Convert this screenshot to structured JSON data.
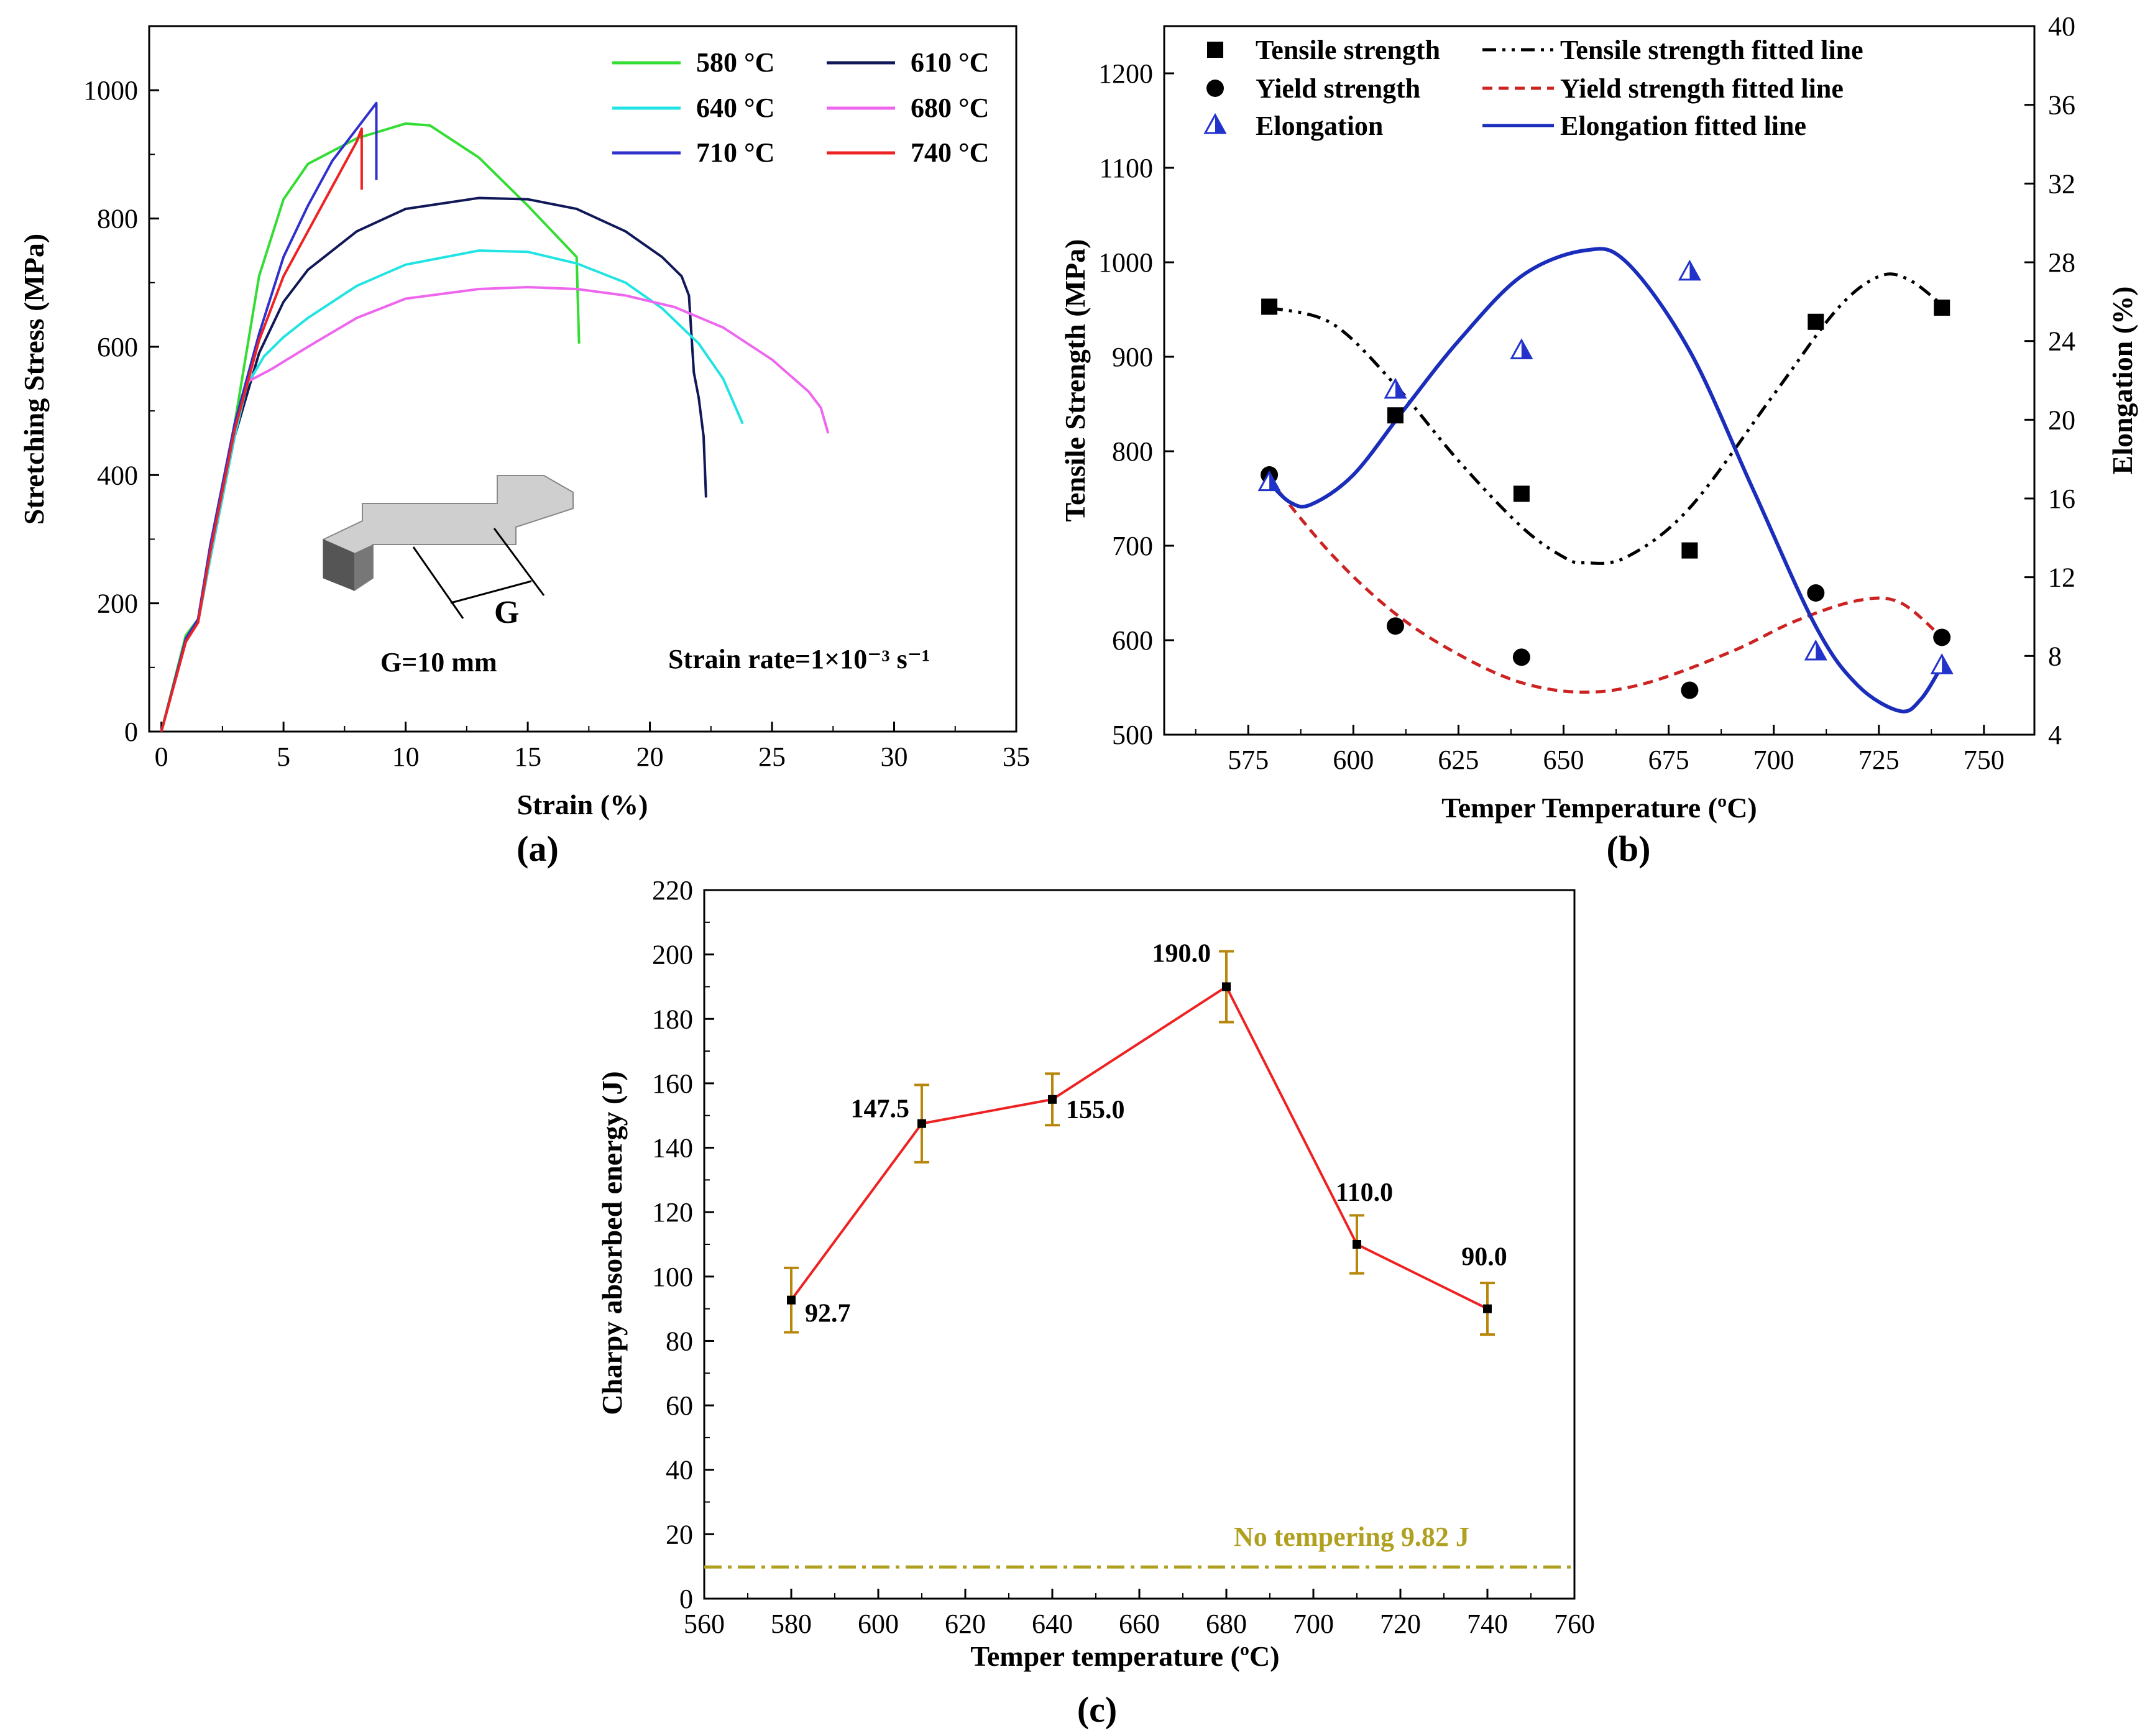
{
  "chart_data": [
    {
      "panel": "(a)",
      "type": "line",
      "xlabel": "Strain (%)",
      "ylabel": "Stretching Stress (MPa)",
      "xlim": [
        -0.5,
        35
      ],
      "ylim": [
        0,
        1100
      ],
      "xticks": [
        0,
        5,
        10,
        15,
        20,
        25,
        30,
        35
      ],
      "yticks": [
        0,
        200,
        400,
        600,
        800,
        1000
      ],
      "legend_position": "top-right",
      "annotations": [
        "G=10 mm",
        "Strain rate=1×10⁻³ s⁻¹",
        "G"
      ],
      "series": [
        {
          "name": "580 °C",
          "color": "#33dd33",
          "points": [
            [
              0,
              0
            ],
            [
              1,
              150
            ],
            [
              1.5,
              175
            ],
            [
              2,
              280
            ],
            [
              3,
              480
            ],
            [
              4,
              710
            ],
            [
              5,
              830
            ],
            [
              6,
              885
            ],
            [
              8,
              925
            ],
            [
              10,
              948
            ],
            [
              11,
              945
            ],
            [
              13,
              895
            ],
            [
              15,
              820
            ],
            [
              16.5,
              760
            ],
            [
              17,
              740
            ],
            [
              17.1,
              605
            ]
          ]
        },
        {
          "name": "610 °C",
          "color": "#101858",
          "points": [
            [
              0,
              0
            ],
            [
              1,
              140
            ],
            [
              1.5,
              170
            ],
            [
              2,
              270
            ],
            [
              3,
              460
            ],
            [
              4,
              590
            ],
            [
              5,
              670
            ],
            [
              6,
              720
            ],
            [
              8,
              780
            ],
            [
              10,
              815
            ],
            [
              13,
              832
            ],
            [
              15,
              830
            ],
            [
              17,
              815
            ],
            [
              19,
              780
            ],
            [
              20.5,
              740
            ],
            [
              21.3,
              710
            ],
            [
              21.6,
              680
            ],
            [
              21.8,
              560
            ],
            [
              22,
              520
            ],
            [
              22.2,
              460
            ],
            [
              22.3,
              365
            ]
          ]
        },
        {
          "name": "640 °C",
          "color": "#22e3e3",
          "points": [
            [
              0,
              0
            ],
            [
              1,
              140
            ],
            [
              1.5,
              170
            ],
            [
              2,
              270
            ],
            [
              3,
              460
            ],
            [
              3.5,
              540
            ],
            [
              4.2,
              585
            ],
            [
              5,
              615
            ],
            [
              6,
              645
            ],
            [
              8,
              695
            ],
            [
              10,
              728
            ],
            [
              13,
              750
            ],
            [
              15,
              748
            ],
            [
              17,
              730
            ],
            [
              19,
              700
            ],
            [
              20.5,
              660
            ],
            [
              22,
              605
            ],
            [
              23,
              550
            ],
            [
              23.8,
              480
            ]
          ]
        },
        {
          "name": "680 °C",
          "color": "#ee66ee",
          "points": [
            [
              0,
              0
            ],
            [
              1,
              140
            ],
            [
              1.5,
              170
            ],
            [
              2,
              280
            ],
            [
              3,
              470
            ],
            [
              3.5,
              545
            ],
            [
              4.5,
              565
            ],
            [
              6,
              600
            ],
            [
              8,
              645
            ],
            [
              10,
              675
            ],
            [
              13,
              690
            ],
            [
              15,
              693
            ],
            [
              17,
              690
            ],
            [
              19,
              680
            ],
            [
              21,
              662
            ],
            [
              23,
              630
            ],
            [
              25,
              580
            ],
            [
              26.5,
              530
            ],
            [
              27,
              505
            ],
            [
              27.3,
              465
            ]
          ]
        },
        {
          "name": "710 °C",
          "color": "#3030cc",
          "points": [
            [
              0,
              0
            ],
            [
              1,
              145
            ],
            [
              1.5,
              175
            ],
            [
              2,
              290
            ],
            [
              3,
              480
            ],
            [
              4,
              620
            ],
            [
              5,
              740
            ],
            [
              6,
              820
            ],
            [
              7,
              890
            ],
            [
              8,
              940
            ],
            [
              8.8,
              980
            ],
            [
              8.8,
              860
            ]
          ]
        },
        {
          "name": "740 °C",
          "color": "#ee2222",
          "points": [
            [
              0,
              0
            ],
            [
              1,
              140
            ],
            [
              1.5,
              170
            ],
            [
              2,
              280
            ],
            [
              3,
              470
            ],
            [
              4,
              610
            ],
            [
              5,
              710
            ],
            [
              6,
              780
            ],
            [
              7,
              850
            ],
            [
              8,
              920
            ],
            [
              8.2,
              940
            ],
            [
              8.2,
              845
            ]
          ]
        }
      ]
    },
    {
      "panel": "(b)",
      "type": "scatter",
      "xlabel": "Temper Temperature (ºC)",
      "ylabel": "Tensile Strength (MPa)",
      "y2label": "Elongation (%)",
      "xlim": [
        555,
        762
      ],
      "ylim": [
        500,
        1250
      ],
      "y2lim": [
        4,
        40
      ],
      "xticks": [
        575,
        600,
        625,
        650,
        675,
        700,
        725,
        750
      ],
      "yticks": [
        500,
        600,
        700,
        800,
        900,
        1000,
        1100,
        1200
      ],
      "y2ticks": [
        4,
        8,
        12,
        16,
        20,
        24,
        28,
        32,
        36,
        40
      ],
      "legend_position": "top",
      "x": [
        580,
        610,
        640,
        680,
        710,
        740
      ],
      "series": [
        {
          "name": "Tensile strength",
          "marker": "square",
          "axis": "left",
          "values": [
            953,
            838,
            755,
            695,
            937,
            952
          ]
        },
        {
          "name": "Yield strength",
          "marker": "circle",
          "axis": "left",
          "values": [
            775,
            615,
            582,
            547,
            650,
            603
          ]
        },
        {
          "name": "Elongation",
          "marker": "triangle",
          "axis": "right",
          "values": [
            16.8,
            21.5,
            23.5,
            27.5,
            8.2,
            7.5
          ]
        }
      ],
      "fitted_lines": [
        {
          "name": "Tensile strength fitted line",
          "axis": "left",
          "style": "dash-dot-dot",
          "color": "#000000",
          "points": [
            [
              580,
              952
            ],
            [
              595,
              935
            ],
            [
              610,
              870
            ],
            [
              625,
              790
            ],
            [
              640,
              720
            ],
            [
              650,
              688
            ],
            [
              655,
              682
            ],
            [
              665,
              688
            ],
            [
              680,
              740
            ],
            [
              700,
              860
            ],
            [
              715,
              950
            ],
            [
              725,
              985
            ],
            [
              732,
              982
            ],
            [
              740,
              955
            ]
          ]
        },
        {
          "name": "Yield strength fitted line",
          "axis": "left",
          "style": "dashed",
          "color": "#cc2222",
          "points": [
            [
              580,
              770
            ],
            [
              595,
              690
            ],
            [
              610,
              628
            ],
            [
              625,
              585
            ],
            [
              640,
              555
            ],
            [
              655,
              545
            ],
            [
              670,
              555
            ],
            [
              690,
              588
            ],
            [
              705,
              620
            ],
            [
              720,
              642
            ],
            [
              730,
              640
            ],
            [
              740,
              603
            ]
          ]
        },
        {
          "name": "Elongation fitted line",
          "axis": "right",
          "style": "solid",
          "color": "#1a2dbb",
          "points": [
            [
              580,
              16.8
            ],
            [
              585,
              15.8
            ],
            [
              590,
              15.7
            ],
            [
              600,
              17.2
            ],
            [
              612,
              20.5
            ],
            [
              625,
              24
            ],
            [
              640,
              27.3
            ],
            [
              655,
              28.6
            ],
            [
              665,
              28
            ],
            [
              680,
              23.5
            ],
            [
              695,
              16.5
            ],
            [
              710,
              9.5
            ],
            [
              720,
              6.5
            ],
            [
              730,
              5.2
            ],
            [
              735,
              5.8
            ],
            [
              740,
              7.5
            ]
          ]
        }
      ]
    },
    {
      "panel": "(c)",
      "type": "line",
      "xlabel": "Temper temperature (ºC)",
      "ylabel": "Charpy absorbed energy (J)",
      "xlim": [
        560,
        760
      ],
      "ylim": [
        0,
        220
      ],
      "xticks": [
        560,
        580,
        600,
        620,
        640,
        660,
        680,
        700,
        720,
        740,
        760
      ],
      "yticks": [
        0,
        20,
        40,
        60,
        80,
        100,
        120,
        140,
        160,
        180,
        200,
        220
      ],
      "x": [
        580,
        610,
        640,
        680,
        710,
        740
      ],
      "values": [
        92.7,
        147.5,
        155.0,
        190.0,
        110.0,
        90.0
      ],
      "error_bars": [
        10,
        12,
        8,
        11,
        9,
        8
      ],
      "data_labels": [
        "92.7",
        "147.5",
        "155.0",
        "190.0",
        "110.0",
        "90.0"
      ],
      "reference_line": {
        "label": "No tempering 9.82 J",
        "value": 9.82,
        "color": "#b0a020"
      },
      "line_color": "#ee2222",
      "error_color": "#b8860b"
    }
  ]
}
